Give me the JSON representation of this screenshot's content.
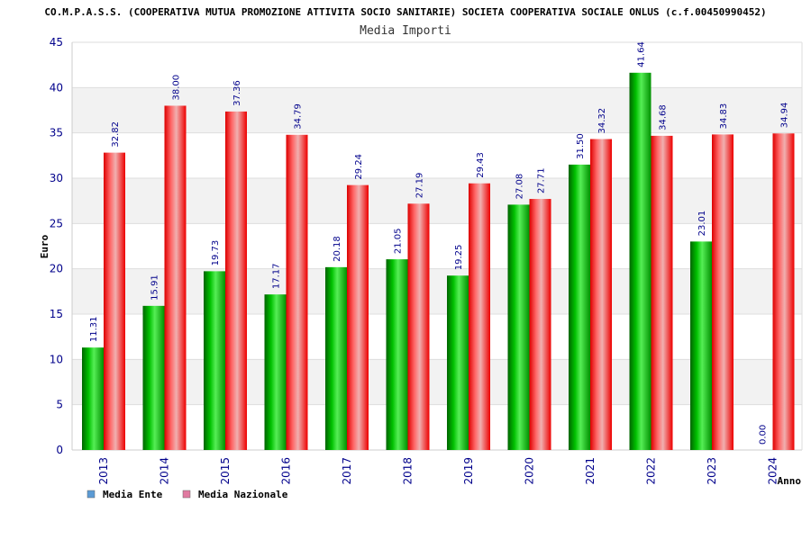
{
  "chart_data": {
    "type": "bar",
    "title": "CO.M.P.A.S.S. (COOPERATIVA MUTUA PROMOZIONE ATTIVITA SOCIO SANITARIE) SOCIETA COOPERATIVA SOCIALE ONLUS (c.f.00450990452)",
    "subtitle": "Media Importi",
    "xlabel": "Anno",
    "ylabel": "Euro",
    "ylim": [
      0,
      45
    ],
    "yticks": [
      0,
      5,
      10,
      15,
      20,
      25,
      30,
      35,
      40,
      45
    ],
    "grid": true,
    "legend_position": "bottom-left",
    "categories": [
      "2013",
      "2014",
      "2015",
      "2016",
      "2017",
      "2018",
      "2019",
      "2020",
      "2021",
      "2022",
      "2023",
      "2024"
    ],
    "series": [
      {
        "name": "Media Ente",
        "color": "#00c000",
        "legend_color": "#5b9bd5",
        "values": [
          11.31,
          15.91,
          19.73,
          17.17,
          20.18,
          21.05,
          19.25,
          27.08,
          31.5,
          41.64,
          23.01,
          0.0
        ],
        "labels": [
          "11.31",
          "15.91",
          "19.73",
          "17.17",
          "20.18",
          "21.05",
          "19.25",
          "27.08",
          "31.50",
          "41.64",
          "23.01",
          "0.00"
        ]
      },
      {
        "name": "Media Nazionale",
        "color": "#ff1a1a",
        "legend_color": "#e07aa0",
        "values": [
          32.82,
          38.0,
          37.36,
          34.79,
          29.24,
          27.19,
          29.43,
          27.71,
          34.32,
          34.68,
          34.83,
          34.94
        ],
        "labels": [
          "32.82",
          "38.00",
          "37.36",
          "34.79",
          "29.24",
          "27.19",
          "29.43",
          "27.71",
          "34.32",
          "34.68",
          "34.83",
          "34.94"
        ]
      }
    ]
  }
}
